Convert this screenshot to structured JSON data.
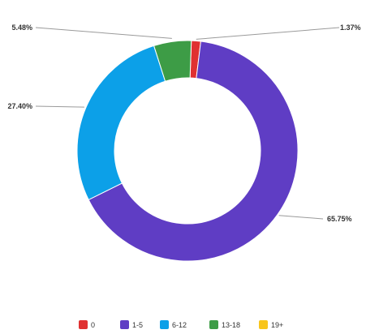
{
  "chart_data": {
    "type": "pie",
    "donut": true,
    "categories": [
      "0",
      "1-5",
      "6-12",
      "13-18",
      "19+"
    ],
    "values": [
      1.37,
      65.75,
      27.4,
      5.48,
      0.0
    ],
    "labels": [
      "1.37%",
      "65.75%",
      "27.40%",
      "5.48%",
      ""
    ],
    "colors": [
      "#e03131",
      "#5f3dc4",
      "#0ca0e8",
      "#3d9c46",
      "#f8c51c"
    ],
    "legend": "bottom"
  }
}
